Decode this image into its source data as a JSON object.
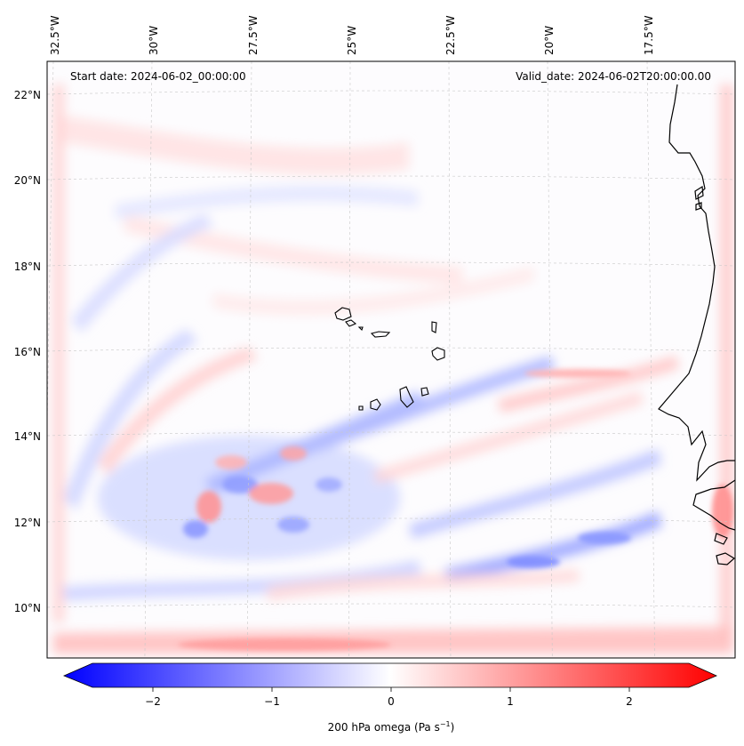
{
  "map": {
    "start_date": "Start date: 2024-06-02_00:00:00",
    "valid_date": "Valid_date: 2024-06-02T20:00:00.00",
    "lon_ticks": [
      "32.5°W",
      "30°W",
      "27.5°W",
      "25°W",
      "22.5°W",
      "20°W",
      "17.5°W"
    ],
    "lat_ticks": [
      "22°N",
      "20°N",
      "18°N",
      "16°N",
      "14°N",
      "12°N",
      "10°N"
    ],
    "field_colors": {
      "neg_strong": "#0000ff",
      "neutral": "#ffffff",
      "pos_strong": "#ff0000",
      "coast": "#000000"
    }
  },
  "colorbar": {
    "ticks": [
      "−2",
      "−1",
      "0",
      "1",
      "2"
    ],
    "label_main": "200 hPa omega (Pa s",
    "label_sup": "−1",
    "label_close": ")"
  }
}
